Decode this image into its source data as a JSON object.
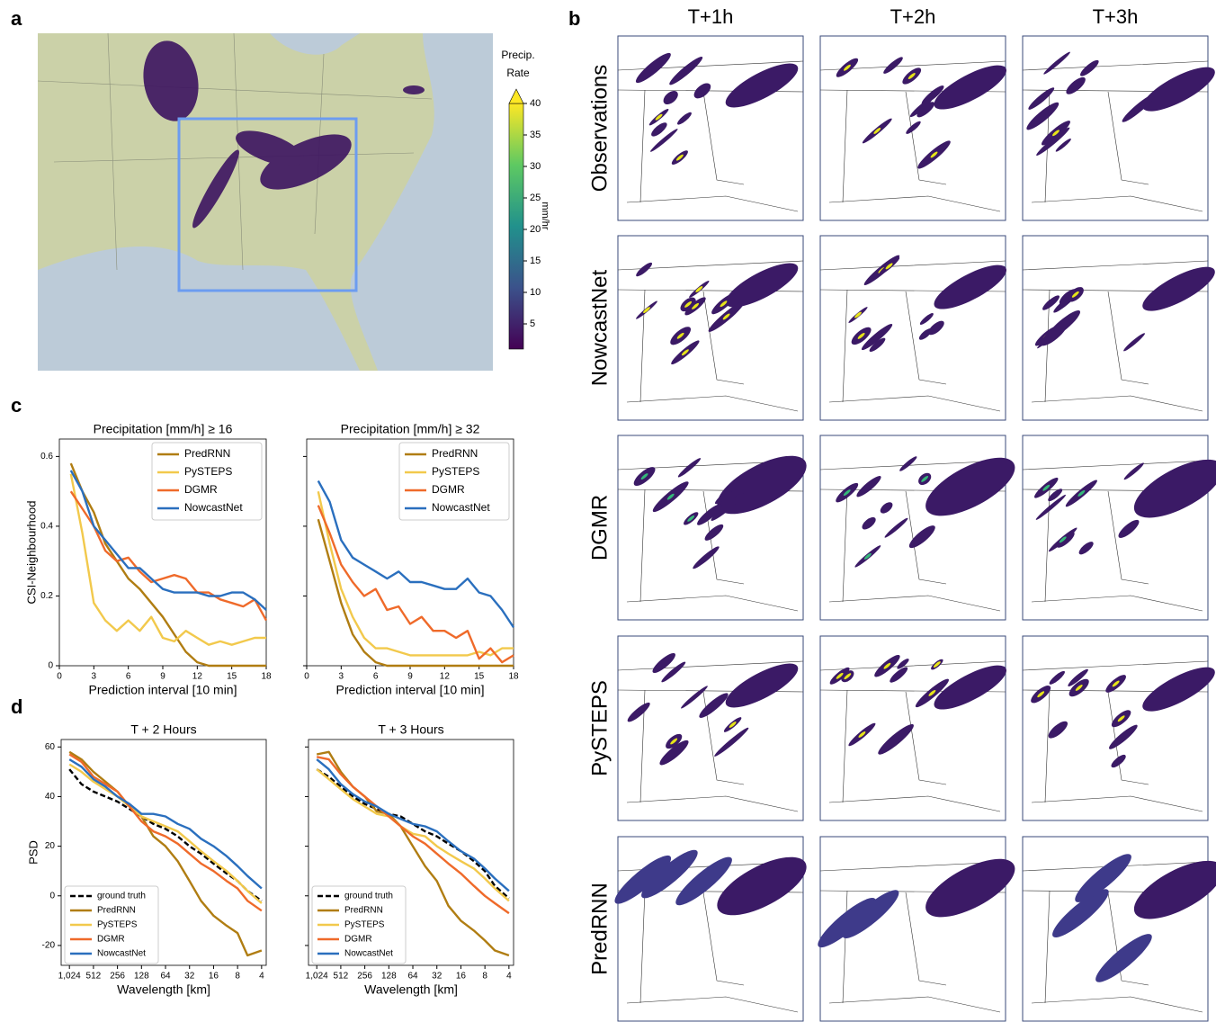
{
  "panel_labels": [
    "a",
    "b",
    "c",
    "d"
  ],
  "map": {
    "colorbar": {
      "title": [
        "Precip.",
        "Rate"
      ],
      "unit": "mm/hr",
      "lim": [
        1,
        40
      ],
      "ticks": [
        5,
        10,
        15,
        20,
        25,
        30,
        35,
        40
      ],
      "extend": "max"
    }
  },
  "grid": {
    "columns": [
      "T+1h",
      "T+2h",
      "T+3h"
    ],
    "rows": [
      "Observations",
      "NowcastNet",
      "DGMR",
      "PySTEPS",
      "PredRNN"
    ]
  },
  "chart_data": [
    {
      "type": "line",
      "title": "Precipitation [mm/h]  ≥  16",
      "xlabel": "Prediction interval [10 min]",
      "ylabel": "CSI-Neighbourhood",
      "x": [
        1,
        2,
        3,
        4,
        5,
        6,
        7,
        8,
        9,
        10,
        11,
        12,
        13,
        14,
        15,
        16,
        17,
        18
      ],
      "xlim": [
        0,
        18
      ],
      "xticks": [
        0,
        3,
        6,
        9,
        12,
        15,
        18
      ],
      "ylim": [
        0,
        0.65
      ],
      "yticks": [
        0,
        0.2,
        0.4,
        0.6
      ],
      "ytick_labels": true,
      "legend": "upper right",
      "series": [
        {
          "name": "PredRNN",
          "color": "#b07d12",
          "values": [
            0.58,
            0.5,
            0.44,
            0.35,
            0.3,
            0.25,
            0.22,
            0.18,
            0.14,
            0.09,
            0.04,
            0.01,
            0,
            0,
            0,
            0,
            0,
            0
          ]
        },
        {
          "name": "PySTEPS",
          "color": "#f2c94c",
          "values": [
            0.55,
            0.38,
            0.18,
            0.13,
            0.1,
            0.13,
            0.1,
            0.14,
            0.08,
            0.07,
            0.1,
            0.08,
            0.06,
            0.07,
            0.06,
            0.07,
            0.08,
            0.08
          ]
        },
        {
          "name": "DGMR",
          "color": "#ef6a2a",
          "values": [
            0.5,
            0.45,
            0.4,
            0.33,
            0.3,
            0.31,
            0.27,
            0.24,
            0.25,
            0.26,
            0.25,
            0.21,
            0.21,
            0.19,
            0.18,
            0.17,
            0.19,
            0.13
          ]
        },
        {
          "name": "NowcastNet",
          "color": "#2a6fbe",
          "values": [
            0.56,
            0.5,
            0.4,
            0.36,
            0.32,
            0.28,
            0.28,
            0.25,
            0.22,
            0.21,
            0.21,
            0.21,
            0.2,
            0.2,
            0.21,
            0.21,
            0.19,
            0.16
          ]
        }
      ]
    },
    {
      "type": "line",
      "title": "Precipitation [mm/h]  ≥  32",
      "xlabel": "Prediction interval [10 min]",
      "x": [
        1,
        2,
        3,
        4,
        5,
        6,
        7,
        8,
        9,
        10,
        11,
        12,
        13,
        14,
        15,
        16,
        17,
        18
      ],
      "xlim": [
        0,
        18
      ],
      "xticks": [
        0,
        3,
        6,
        9,
        12,
        15,
        18
      ],
      "ylim": [
        0,
        0.65
      ],
      "yticks": [
        0,
        0.2,
        0.4,
        0.6
      ],
      "ytick_labels": false,
      "legend": "upper right",
      "series": [
        {
          "name": "PredRNN",
          "color": "#b07d12",
          "values": [
            0.42,
            0.3,
            0.18,
            0.09,
            0.04,
            0.01,
            0,
            0,
            0,
            0,
            0,
            0,
            0,
            0,
            0,
            0,
            0,
            0
          ]
        },
        {
          "name": "PySTEPS",
          "color": "#f2c94c",
          "values": [
            0.5,
            0.35,
            0.22,
            0.14,
            0.08,
            0.05,
            0.05,
            0.04,
            0.03,
            0.03,
            0.03,
            0.03,
            0.03,
            0.03,
            0.04,
            0.03,
            0.05,
            0.05
          ]
        },
        {
          "name": "DGMR",
          "color": "#ef6a2a",
          "values": [
            0.46,
            0.38,
            0.29,
            0.24,
            0.2,
            0.22,
            0.16,
            0.17,
            0.12,
            0.14,
            0.1,
            0.1,
            0.08,
            0.1,
            0.02,
            0.05,
            0.01,
            0.03
          ]
        },
        {
          "name": "NowcastNet",
          "color": "#2a6fbe",
          "values": [
            0.53,
            0.47,
            0.36,
            0.31,
            0.29,
            0.27,
            0.25,
            0.27,
            0.24,
            0.24,
            0.23,
            0.22,
            0.22,
            0.25,
            0.21,
            0.2,
            0.16,
            0.11
          ]
        }
      ]
    },
    {
      "type": "line",
      "title": "T + 2 Hours",
      "xlabel": "Wavelength [km]",
      "ylabel": "PSD",
      "xscale": "log",
      "x": [
        1024,
        724,
        512,
        362,
        256,
        181,
        128,
        91,
        64,
        45,
        32,
        23,
        16,
        11,
        8,
        6,
        4
      ],
      "xlim": [
        1300,
        3.5
      ],
      "xticks": [
        {
          "value": 1024,
          "label": "1,024"
        },
        512,
        256,
        128,
        64,
        32,
        16,
        8,
        4
      ],
      "ylim": [
        -28,
        63
      ],
      "yticks": [
        -20,
        0,
        20,
        40,
        60
      ],
      "ytick_labels": true,
      "legend": "lower left",
      "series": [
        {
          "name": "ground truth",
          "color": "#000000",
          "linestyle": "dashed",
          "values": [
            51,
            45,
            42,
            40,
            38,
            35,
            32,
            29,
            27,
            24,
            20,
            17,
            13,
            9,
            6,
            2,
            -2
          ]
        },
        {
          "name": "PredRNN",
          "color": "#b07d12",
          "values": [
            58,
            55,
            50,
            46,
            42,
            36,
            32,
            24,
            20,
            14,
            6,
            -2,
            -8,
            -12,
            -15,
            -24,
            -22
          ]
        },
        {
          "name": "PySTEPS",
          "color": "#f2c94c",
          "values": [
            53,
            50,
            46,
            43,
            40,
            36,
            32,
            30,
            28,
            26,
            22,
            18,
            14,
            10,
            6,
            2,
            -3
          ]
        },
        {
          "name": "DGMR",
          "color": "#ef6a2a",
          "values": [
            57,
            54,
            48,
            45,
            42,
            36,
            30,
            26,
            24,
            21,
            17,
            13,
            10,
            6,
            3,
            -2,
            -6
          ]
        },
        {
          "name": "NowcastNet",
          "color": "#2a6fbe",
          "values": [
            55,
            52,
            47,
            44,
            40,
            37,
            33,
            33,
            32,
            29,
            27,
            23,
            20,
            16,
            12,
            8,
            3
          ]
        }
      ]
    },
    {
      "type": "line",
      "title": "T + 3 Hours",
      "xlabel": "Wavelength [km]",
      "xscale": "log",
      "x": [
        1024,
        724,
        512,
        362,
        256,
        181,
        128,
        91,
        64,
        45,
        32,
        23,
        16,
        11,
        8,
        6,
        4
      ],
      "xlim": [
        1300,
        3.5
      ],
      "xticks": [
        {
          "value": 1024,
          "label": "1,024"
        },
        512,
        256,
        128,
        64,
        32,
        16,
        8,
        4
      ],
      "ylim": [
        -28,
        63
      ],
      "yticks": [
        -20,
        0,
        20,
        40,
        60
      ],
      "ytick_labels": false,
      "legend": "lower left",
      "series": [
        {
          "name": "ground truth",
          "color": "#000000",
          "linestyle": "dashed",
          "values": [
            51,
            48,
            44,
            40,
            37,
            35,
            33,
            32,
            29,
            26,
            24,
            21,
            18,
            14,
            10,
            4,
            -1
          ]
        },
        {
          "name": "PredRNN",
          "color": "#b07d12",
          "values": [
            57,
            58,
            50,
            44,
            40,
            34,
            33,
            28,
            20,
            12,
            6,
            -4,
            -10,
            -14,
            -18,
            -22,
            -24
          ]
        },
        {
          "name": "PySTEPS",
          "color": "#f2c94c",
          "values": [
            51,
            47,
            43,
            39,
            36,
            33,
            32,
            28,
            25,
            24,
            20,
            17,
            14,
            11,
            7,
            3,
            -2
          ]
        },
        {
          "name": "DGMR",
          "color": "#ef6a2a",
          "values": [
            56,
            55,
            49,
            44,
            40,
            36,
            32,
            28,
            24,
            21,
            17,
            13,
            9,
            4,
            0,
            -3,
            -7
          ]
        },
        {
          "name": "NowcastNet",
          "color": "#2a6fbe",
          "values": [
            55,
            51,
            45,
            41,
            38,
            36,
            33,
            31,
            29,
            28,
            26,
            22,
            18,
            15,
            11,
            7,
            2
          ]
        }
      ]
    }
  ]
}
